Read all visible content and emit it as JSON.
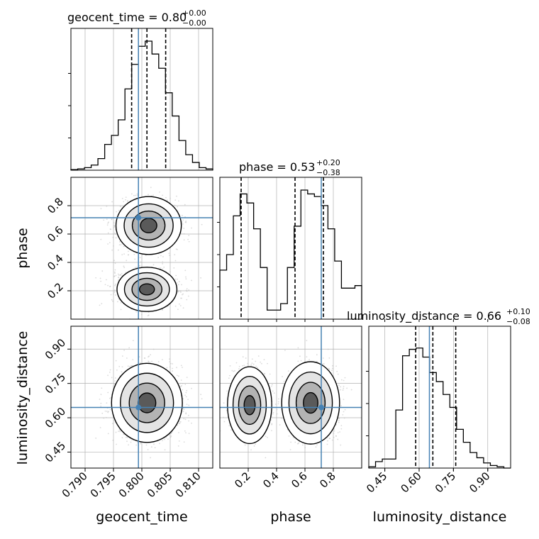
{
  "chart_data": {
    "type": "corner",
    "parameters": [
      "geocent_time",
      "phase",
      "luminosity_distance"
    ],
    "titles": [
      {
        "text": "geocent_time = 0.80",
        "sup": "+0.00",
        "sub": "−0.00"
      },
      {
        "text": "phase = 0.53",
        "sup": "+0.20",
        "sub": "−0.38"
      },
      {
        "text": "luminosity_distance = 0.66",
        "sup": "+0.10",
        "sub": "−0.08"
      }
    ],
    "ranges": {
      "geocent_time": [
        0.7875,
        0.8125
      ],
      "phase": [
        0.0,
        1.0
      ],
      "luminosity_distance": [
        0.38,
        1.0
      ]
    },
    "ticks": {
      "geocent_time": [
        0.79,
        0.795,
        0.8,
        0.805,
        0.81
      ],
      "phase": [
        0.2,
        0.4,
        0.6,
        0.8
      ],
      "luminosity_distance": [
        0.45,
        0.6,
        0.75,
        0.9
      ]
    },
    "tick_labels": {
      "geocent_time": [
        "0.790",
        "0.795",
        "0.800",
        "0.805",
        "0.810"
      ],
      "phase": [
        "0.2",
        "0.4",
        "0.6",
        "0.8"
      ],
      "luminosity_distance": [
        "0.45",
        "0.60",
        "0.75",
        "0.90"
      ]
    },
    "truths": {
      "geocent_time": 0.7994,
      "phase": 0.715,
      "luminosity_distance": 0.645
    },
    "quantiles": {
      "geocent_time": [
        0.7982,
        0.8009,
        0.8042
      ],
      "phase": [
        0.15,
        0.53,
        0.73
      ],
      "luminosity_distance": [
        0.585,
        0.66,
        0.76
      ]
    },
    "histograms": {
      "geocent_time": [
        0.005,
        0.01,
        0.02,
        0.04,
        0.09,
        0.2,
        0.27,
        0.39,
        0.63,
        0.82,
        0.96,
        1.0,
        0.9,
        0.79,
        0.6,
        0.42,
        0.23,
        0.12,
        0.06,
        0.02,
        0.01
      ],
      "phase": [
        0.38,
        0.5,
        0.8,
        0.97,
        0.9,
        0.7,
        0.4,
        0.07,
        0.07,
        0.12,
        0.4,
        0.72,
        1.0,
        0.97,
        0.95,
        0.88,
        0.7,
        0.45,
        0.24,
        0.24,
        0.26
      ],
      "luminosity_distance": [
        0.01,
        0.05,
        0.07,
        0.07,
        0.45,
        0.87,
        0.92,
        0.93,
        0.86,
        0.74,
        0.67,
        0.57,
        0.47,
        0.3,
        0.2,
        0.12,
        0.08,
        0.04,
        0.02,
        0.01,
        0.0
      ]
    },
    "grid": true,
    "colors": {
      "truth": "#4682b4",
      "hist": "#000000",
      "quantile": "#000000",
      "scatter": "#bdbdbd",
      "grid": "#b0b0b0"
    }
  }
}
